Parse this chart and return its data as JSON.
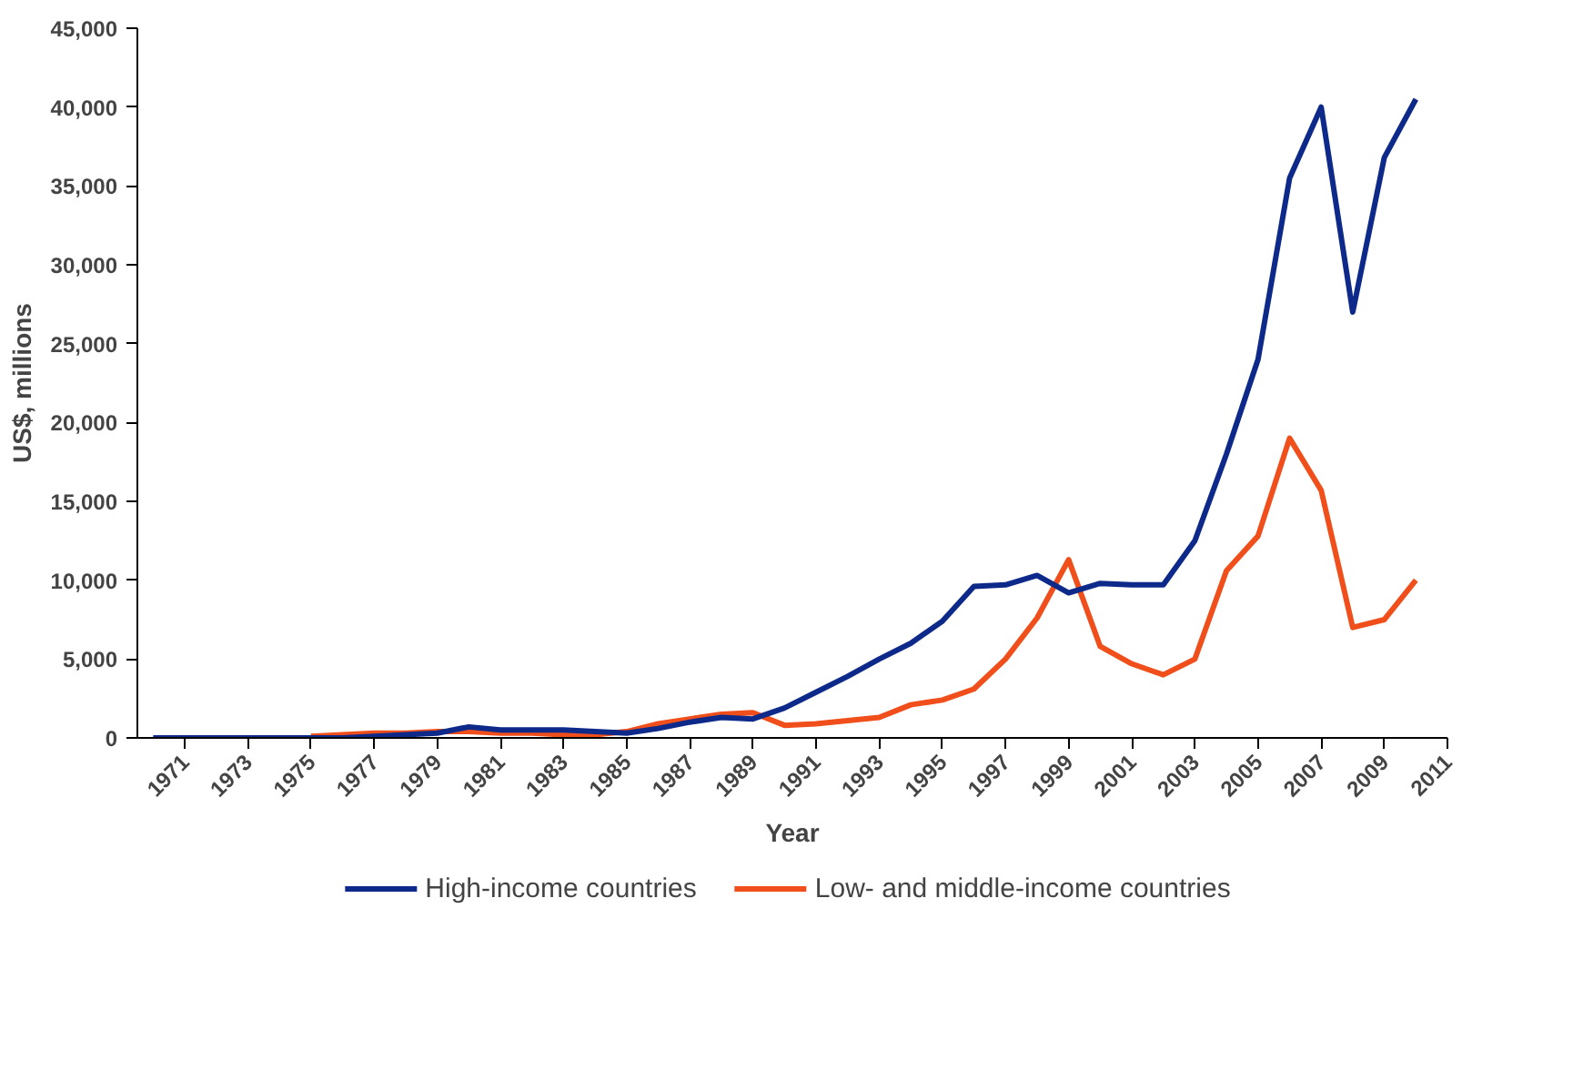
{
  "chart_data": {
    "type": "line",
    "xlabel": "Year",
    "ylabel": "US$, millions",
    "x": [
      1970,
      1971,
      1972,
      1973,
      1974,
      1975,
      1976,
      1977,
      1978,
      1979,
      1980,
      1981,
      1982,
      1983,
      1984,
      1985,
      1986,
      1987,
      1988,
      1989,
      1990,
      1991,
      1992,
      1993,
      1994,
      1995,
      1996,
      1997,
      1998,
      1999,
      2000,
      2001,
      2002,
      2003,
      2004,
      2005,
      2006,
      2007,
      2008,
      2009,
      2010
    ],
    "series": [
      {
        "name": "High-income countries",
        "color": "#0d2a8a",
        "values": [
          0,
          0,
          0,
          0,
          0,
          0,
          0,
          100,
          200,
          300,
          700,
          500,
          500,
          500,
          400,
          300,
          600,
          1000,
          1300,
          1200,
          1900,
          2900,
          3900,
          5000,
          6000,
          7400,
          9600,
          9700,
          10300,
          9200,
          9800,
          9700,
          9700,
          12500,
          18000,
          24000,
          35500,
          40000,
          27000,
          36800,
          40500
        ]
      },
      {
        "name": "Low- and middle-income countries",
        "color": "#f04e1a",
        "x": [
          1975,
          1976,
          1977,
          1978,
          1979,
          1980,
          1981,
          1982,
          1983,
          1984,
          1985,
          1986,
          1987,
          1988,
          1989,
          1990,
          1991,
          1992,
          1993,
          1994,
          1995,
          1996,
          1997,
          1998,
          1999,
          2000,
          2001,
          2002,
          2003,
          2004,
          2005,
          2006,
          2007,
          2008,
          2009,
          2010
        ],
        "values": [
          100,
          200,
          300,
          300,
          400,
          400,
          300,
          300,
          200,
          200,
          400,
          900,
          1200,
          1500,
          1600,
          800,
          900,
          1100,
          1300,
          2100,
          2400,
          3100,
          5000,
          7600,
          11300,
          5800,
          4700,
          4000,
          5000,
          10600,
          12800,
          19000,
          15700,
          7000,
          7500,
          10000
        ]
      }
    ],
    "xlim": [
      1969.5,
      2011
    ],
    "xticks": [
      1971,
      1973,
      1975,
      1977,
      1979,
      1981,
      1983,
      1985,
      1987,
      1989,
      1991,
      1993,
      1995,
      1997,
      1999,
      2001,
      2003,
      2005,
      2007,
      2009,
      2011
    ],
    "ylim": [
      0,
      45000
    ],
    "yticks": [
      {
        "value": 0,
        "label": "0"
      },
      {
        "value": 5000,
        "label": "5,000"
      },
      {
        "value": 10000,
        "label": "10,000"
      },
      {
        "value": 15000,
        "label": "15,000"
      },
      {
        "value": 20000,
        "label": "20,000"
      },
      {
        "value": 25000,
        "label": "25,000"
      },
      {
        "value": 30000,
        "label": "30,000"
      },
      {
        "value": 35000,
        "label": "35,000"
      },
      {
        "value": 40000,
        "label": "40,000"
      },
      {
        "value": 45000,
        "label": "45,000"
      }
    ],
    "grid": false,
    "legend": "bottom",
    "marker": "none",
    "line_style": "solid"
  }
}
